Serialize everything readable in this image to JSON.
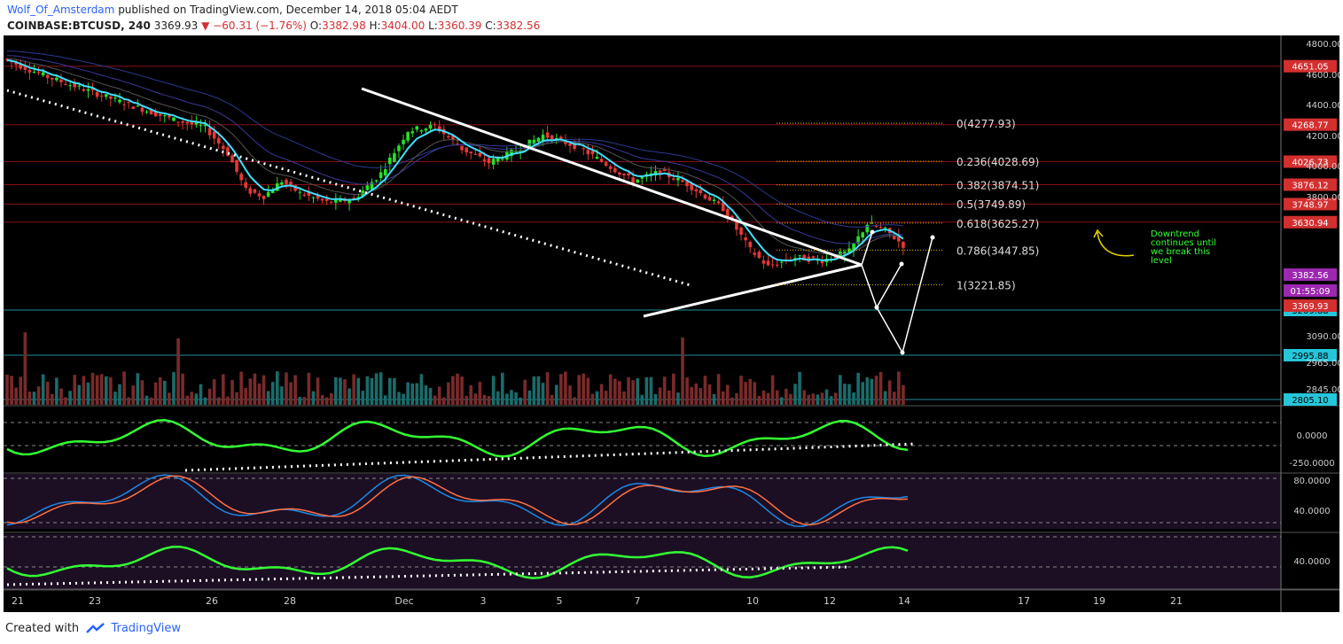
{
  "header": {
    "author": "Wolf_Of_Amsterdam",
    "published": "published on TradingView.com, December 14, 2018 05:04 AEDT",
    "symbol": "COINBASE:BTCUSD, 240",
    "last": "3369.93",
    "change_arrow": "▼",
    "change": "−60.31 (−1.76%)",
    "o_label": "O:",
    "o_value": "3382.98",
    "h_label": "H:",
    "h_value": "3404.00",
    "l_label": "L:",
    "l_value": "3360.39",
    "c_label": "C:",
    "c_value": "3382.56"
  },
  "footer": {
    "created_with": "Created with",
    "brand": "TradingView"
  },
  "chart_data": {
    "type": "candlestick",
    "symbol": "COINBASE:BTCUSD",
    "interval": "240",
    "price_axis": {
      "ticks": [
        "4800.00",
        "4600.00",
        "4400.00",
        "4200.00",
        "4000.00",
        "3800.00",
        "3090.00",
        "2965.00",
        "2845.00"
      ],
      "range": [
        2805,
        4850
      ]
    },
    "time_axis": [
      "21",
      "23",
      "26",
      "28",
      "Dec",
      "3",
      "5",
      "7",
      "10",
      "12",
      "14",
      "17",
      "19",
      "21"
    ],
    "horizontal_levels": [
      {
        "label": "4651.05",
        "color": "#d32f2f"
      },
      {
        "label": "4268.77",
        "color": "#d32f2f"
      },
      {
        "label": "4026.73",
        "color": "#d32f2f"
      },
      {
        "label": "3876.12",
        "color": "#d32f2f"
      },
      {
        "label": "3748.97",
        "color": "#d32f2f"
      },
      {
        "label": "3630.94",
        "color": "#d32f2f"
      },
      {
        "label": "3209.88",
        "color": "#26c6da"
      },
      {
        "label": "2995.88",
        "color": "#26c6da"
      },
      {
        "label": "2805.10",
        "color": "#26c6da"
      }
    ],
    "price_tags": [
      {
        "label": "3382.56",
        "color": "#9c27b0"
      },
      {
        "label": "01:55:09",
        "color": "#9c27b0"
      },
      {
        "label": "3369.93",
        "color": "#d32f2f"
      }
    ],
    "fibonacci": [
      {
        "label": "0(4277.93)",
        "price": 4277.93
      },
      {
        "label": "0.236(4028.69)",
        "price": 4028.69
      },
      {
        "label": "0.382(3874.51)",
        "price": 3874.51
      },
      {
        "label": "0.5(3749.89)",
        "price": 3749.89
      },
      {
        "label": "0.618(3625.27)",
        "price": 3625.27
      },
      {
        "label": "0.786(3447.85)",
        "price": 3447.85
      },
      {
        "label": "1(3221.85)",
        "price": 3221.85
      }
    ],
    "annotation": "Downtrend continues until we break this level",
    "annotation_lines": [
      "Downtrend",
      "continues until",
      "we break this",
      "level"
    ],
    "indicator_axes": [
      {
        "ticks": [
          "0.0000",
          "-250.0000"
        ]
      },
      {
        "ticks": [
          "80.0000",
          "40.0000"
        ]
      },
      {
        "ticks": [
          "40.0000"
        ]
      }
    ],
    "colors": {
      "up": "#26e02a",
      "down": "#e53935",
      "ema": "#40e0ff",
      "osc": "#33ff33",
      "stoch_k": "#1e88e5",
      "stoch_d": "#ff7043",
      "background": "#000000",
      "grid": "#8b0000"
    }
  }
}
